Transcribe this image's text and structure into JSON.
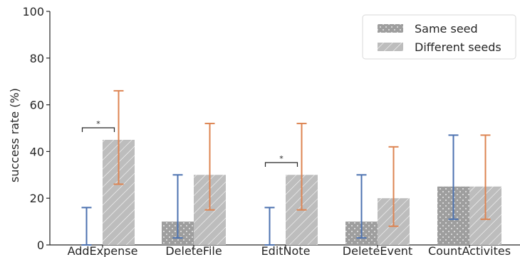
{
  "chart_data": {
    "type": "bar",
    "title": "",
    "xlabel": "",
    "ylabel": "success rate (%)",
    "ylim": [
      0,
      100
    ],
    "yticks": [
      "0",
      "20",
      "40",
      "60",
      "80",
      "100"
    ],
    "grid": false,
    "legend_position": "top-right",
    "categories": [
      "AddExpense",
      "DeleteFile",
      "EditNote",
      "DeleteEvent",
      "CountActivites"
    ],
    "series": [
      {
        "name": "Same seed",
        "values": [
          0,
          10,
          0,
          10,
          25
        ],
        "error_low": [
          0,
          3,
          0,
          3,
          11
        ],
        "error_high": [
          16,
          30,
          16,
          30,
          47
        ],
        "error_color": "#4c72b0",
        "pattern": "dots",
        "fill": "#9e9e9e"
      },
      {
        "name": "Different seeds",
        "values": [
          45,
          30,
          30,
          20,
          25
        ],
        "error_low": [
          26,
          15,
          15,
          8,
          11
        ],
        "error_high": [
          66,
          52,
          52,
          42,
          47
        ],
        "error_color": "#dd8452",
        "pattern": "diagonal-hatch",
        "fill": "#bdbdbd"
      }
    ],
    "annotations": [
      {
        "text": "*",
        "category": "AddExpense"
      },
      {
        "text": "*",
        "category": "EditNote"
      }
    ]
  }
}
